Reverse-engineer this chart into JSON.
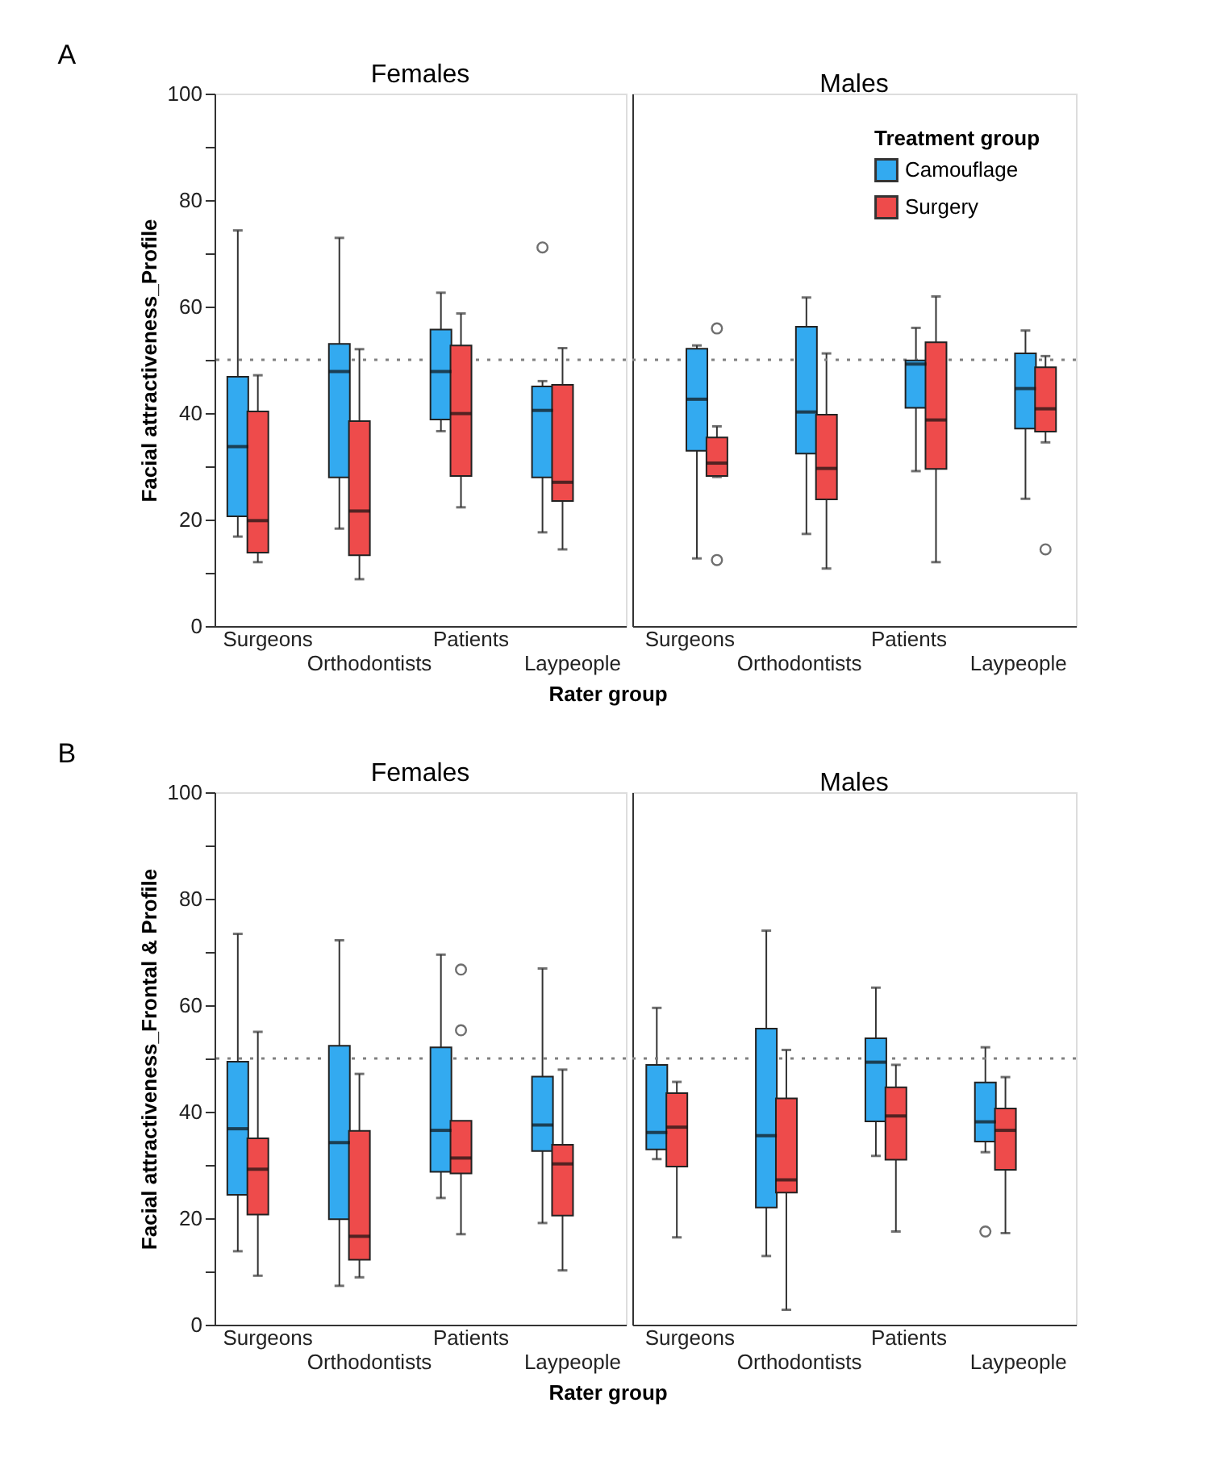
{
  "chart_data": [
    {
      "type": "box",
      "title": "Females",
      "ylabel": "Facial attractiveness_Profile",
      "xlabel": "Rater group",
      "annotations": [
        "A"
      ],
      "categories": [
        "Surgeons",
        "Orthodontists",
        "Patients",
        "Laypeople"
      ],
      "ylim": [
        0,
        100
      ],
      "yticks": [
        0,
        {
          "value": 10,
          "label": null
        },
        20,
        {
          "value": 30,
          "label": null
        },
        40,
        {
          "value": 50,
          "label": null
        },
        60,
        {
          "value": 70,
          "label": null
        },
        80,
        {
          "value": 90,
          "label": null
        },
        100
      ],
      "grid": false,
      "legend": false,
      "ref_lines": [
        {
          "axis": "y",
          "value": 50,
          "line_style": "dotted",
          "color": "#808080"
        }
      ],
      "series": [
        {
          "color": "#33aaf0",
          "boxes": [
            {
              "low": 16.8,
              "q1": 20.6,
              "median": 33.7,
              "q3": 46.8,
              "high": 74.3
            },
            {
              "low": 18.3,
              "q1": 27.9,
              "median": 47.8,
              "q3": 53.0,
              "high": 72.9
            },
            {
              "low": 36.6,
              "q1": 38.8,
              "median": 47.8,
              "q3": 55.7,
              "high": 62.6
            },
            {
              "low": 17.6,
              "q1": 27.9,
              "median": 40.5,
              "q3": 45.0,
              "high": 46.0,
              "outliers": [
                71.1
              ]
            }
          ]
        },
        {
          "color": "#ee4b4b",
          "boxes": [
            {
              "low": 12.0,
              "q1": 13.8,
              "median": 19.8,
              "q3": 40.3,
              "high": 47.1
            },
            {
              "low": 8.8,
              "q1": 13.3,
              "median": 21.6,
              "q3": 38.5,
              "high": 52.0
            },
            {
              "low": 22.3,
              "q1": 28.2,
              "median": 39.9,
              "q3": 52.7,
              "high": 58.7
            },
            {
              "low": 14.4,
              "q1": 23.5,
              "median": 27.0,
              "q3": 45.3,
              "high": 52.2
            }
          ]
        }
      ]
    },
    {
      "type": "box",
      "title": "Males",
      "legend": "top right",
      "legend_title": "Treatment group",
      "tick_labels": "x",
      "categories": [
        "Surgeons",
        "Orthodontists",
        "Patients",
        "Laypeople"
      ],
      "ylim": [
        0,
        100
      ],
      "grid": false,
      "ref_lines": [
        {
          "axis": "y",
          "value": 50,
          "line_style": "dotted",
          "color": "#808080"
        }
      ],
      "series": [
        {
          "name": "Camouflage",
          "color": "#33aaf0",
          "boxes": [
            {
              "low": 12.7,
              "q1": 32.9,
              "median": 42.6,
              "q3": 52.1,
              "high": 52.7
            },
            {
              "low": 17.3,
              "q1": 32.4,
              "median": 40.2,
              "q3": 56.2,
              "high": 61.7
            },
            {
              "low": 29.1,
              "q1": 41.0,
              "median": 49.2,
              "q3": 49.9,
              "high": 56.0
            },
            {
              "low": 23.9,
              "q1": 37.1,
              "median": 44.6,
              "q3": 51.2,
              "high": 55.5
            }
          ]
        },
        {
          "name": "Surgery",
          "color": "#ee4b4b",
          "boxes": [
            {
              "low": 28.0,
              "q1": 28.2,
              "median": 30.6,
              "q3": 35.4,
              "high": 37.5,
              "outliers": [
                55.9,
                12.4
              ]
            },
            {
              "low": 10.8,
              "q1": 23.8,
              "median": 29.6,
              "q3": 39.7,
              "high": 51.2
            },
            {
              "low": 12.0,
              "q1": 29.5,
              "median": 38.7,
              "q3": 53.3,
              "high": 61.9
            },
            {
              "low": 34.5,
              "q1": 36.5,
              "median": 40.8,
              "q3": 48.6,
              "high": 50.7,
              "outliers": [
                14.4
              ]
            }
          ]
        }
      ]
    },
    {
      "type": "box",
      "title": "Females",
      "ylabel": "Facial attractiveness_Frontal & Profile",
      "xlabel": "Rater group",
      "annotations": [
        "B"
      ],
      "categories": [
        "Surgeons",
        "Orthodontists",
        "Patients",
        "Laypeople"
      ],
      "ylim": [
        0,
        100
      ],
      "yticks": [
        0,
        {
          "value": 10,
          "label": null
        },
        20,
        {
          "value": 30,
          "label": null
        },
        40,
        {
          "value": 50,
          "label": null
        },
        60,
        {
          "value": 70,
          "label": null
        },
        80,
        {
          "value": 90,
          "label": null
        },
        100
      ],
      "grid": false,
      "legend": false,
      "ref_lines": [
        {
          "axis": "y",
          "value": 50,
          "line_style": "dotted",
          "color": "#808080"
        }
      ],
      "series": [
        {
          "color": "#33aaf0",
          "boxes": [
            {
              "low": 13.8,
              "q1": 24.4,
              "median": 36.8,
              "q3": 49.4,
              "high": 73.4
            },
            {
              "low": 7.3,
              "q1": 19.8,
              "median": 34.2,
              "q3": 52.4,
              "high": 72.2
            },
            {
              "low": 23.8,
              "q1": 28.7,
              "median": 36.5,
              "q3": 52.1,
              "high": 69.5
            },
            {
              "low": 19.1,
              "q1": 32.6,
              "median": 37.5,
              "q3": 46.6,
              "high": 66.9
            }
          ]
        },
        {
          "color": "#ee4b4b",
          "boxes": [
            {
              "low": 9.2,
              "q1": 20.7,
              "median": 29.2,
              "q3": 35.0,
              "high": 55.0
            },
            {
              "low": 8.9,
              "q1": 12.2,
              "median": 16.6,
              "q3": 36.4,
              "high": 47.1
            },
            {
              "low": 17.0,
              "q1": 28.4,
              "median": 31.3,
              "q3": 38.3,
              "high": 38.3,
              "outliers": [
                66.7,
                55.3
              ]
            },
            {
              "low": 10.2,
              "q1": 20.5,
              "median": 30.2,
              "q3": 33.8,
              "high": 47.9
            }
          ]
        }
      ]
    },
    {
      "type": "box",
      "title": "Males",
      "legend": false,
      "tick_labels": "x",
      "categories": [
        "Surgeons",
        "Orthodontists",
        "Patients",
        "Laypeople"
      ],
      "ylim": [
        0,
        100
      ],
      "grid": false,
      "ref_lines": [
        {
          "axis": "y",
          "value": 50,
          "line_style": "dotted",
          "color": "#808080"
        }
      ],
      "series": [
        {
          "color": "#33aaf0",
          "boxes": [
            {
              "low": 31.1,
              "q1": 32.9,
              "median": 36.1,
              "q3": 48.8,
              "high": 59.5
            },
            {
              "low": 12.9,
              "q1": 22.0,
              "median": 35.5,
              "q3": 55.6,
              "high": 74.0
            },
            {
              "low": 31.7,
              "q1": 38.2,
              "median": 49.3,
              "q3": 53.8,
              "high": 63.3
            },
            {
              "low": 32.4,
              "q1": 34.4,
              "median": 38.1,
              "q3": 45.5,
              "high": 52.1,
              "outliers": [
                17.5
              ]
            }
          ]
        },
        {
          "color": "#ee4b4b",
          "boxes": [
            {
              "low": 16.4,
              "q1": 29.7,
              "median": 37.1,
              "q3": 43.5,
              "high": 45.6
            },
            {
              "low": 2.8,
              "q1": 24.8,
              "median": 27.2,
              "q3": 42.5,
              "high": 51.6
            },
            {
              "low": 17.5,
              "q1": 31.0,
              "median": 39.2,
              "q3": 44.6,
              "high": 48.8
            },
            {
              "low": 17.2,
              "q1": 29.1,
              "median": 36.5,
              "q3": 40.6,
              "high": 46.5
            }
          ]
        }
      ]
    }
  ]
}
